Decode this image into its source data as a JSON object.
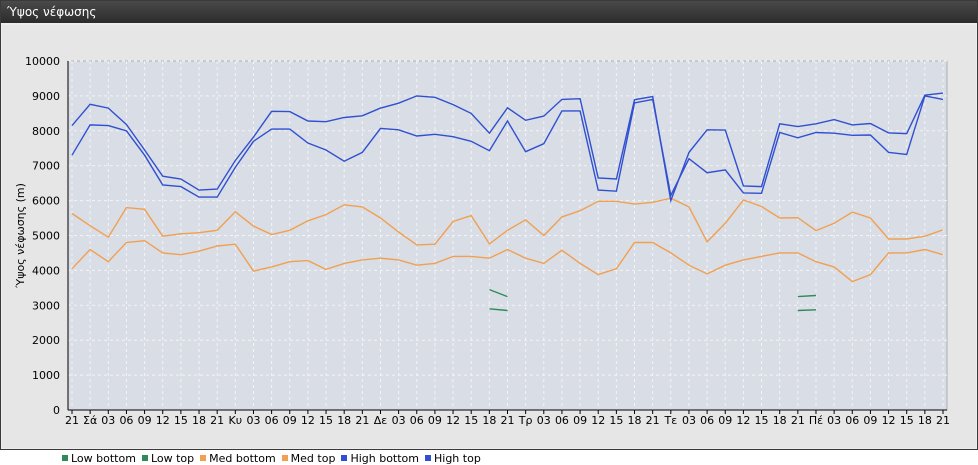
{
  "window": {
    "title": "Ύψος νέφωσης"
  },
  "chart_data": {
    "type": "line",
    "ylabel": "Ύψος νέφωσης (m)",
    "ylim": [
      0,
      10000
    ],
    "yticks": [
      0,
      1000,
      2000,
      3000,
      4000,
      5000,
      6000,
      7000,
      8000,
      9000,
      10000
    ],
    "grid": true,
    "legend_position": "bottom-left",
    "categories": [
      "21",
      "Σά",
      "03",
      "06",
      "09",
      "12",
      "15",
      "18",
      "21",
      "Κυ",
      "03",
      "06",
      "09",
      "12",
      "15",
      "18",
      "21",
      "Δε",
      "03",
      "06",
      "09",
      "12",
      "15",
      "18",
      "21",
      "Τρ",
      "03",
      "06",
      "09",
      "12",
      "15",
      "18",
      "21",
      "Τε",
      "03",
      "06",
      "09",
      "12",
      "15",
      "18",
      "21",
      "Πέ",
      "03",
      "06",
      "09",
      "12",
      "15",
      "18",
      "21"
    ],
    "series": [
      {
        "name": "Low bottom",
        "color": "#2e8b57",
        "values": [
          null,
          null,
          null,
          null,
          null,
          null,
          null,
          null,
          null,
          null,
          null,
          null,
          null,
          null,
          null,
          null,
          null,
          null,
          null,
          null,
          null,
          null,
          null,
          2900,
          2850,
          null,
          null,
          null,
          null,
          null,
          null,
          null,
          null,
          null,
          null,
          null,
          null,
          null,
          null,
          null,
          2850,
          2870,
          null,
          null,
          null,
          null,
          null,
          null,
          null
        ]
      },
      {
        "name": "Low top",
        "color": "#2e8b57",
        "values": [
          null,
          null,
          null,
          null,
          null,
          null,
          null,
          null,
          null,
          null,
          null,
          null,
          null,
          null,
          null,
          null,
          null,
          null,
          null,
          null,
          null,
          null,
          null,
          3450,
          3250,
          null,
          null,
          null,
          null,
          null,
          null,
          null,
          null,
          null,
          null,
          null,
          null,
          null,
          null,
          null,
          3250,
          3280,
          null,
          null,
          null,
          null,
          null,
          null,
          null
        ]
      },
      {
        "name": "Med bottom",
        "color": "#f0a050",
        "values": [
          4050,
          4600,
          4250,
          4800,
          4850,
          4500,
          4450,
          4550,
          4700,
          4750,
          3980,
          4100,
          4250,
          4280,
          4030,
          4200,
          4300,
          4350,
          4300,
          4150,
          4200,
          4400,
          4400,
          4350,
          4600,
          4350,
          4200,
          4580,
          4200,
          3880,
          4050,
          4800,
          4800,
          4500,
          4150,
          3900,
          4150,
          4300,
          4400,
          4500,
          4500,
          4250,
          4100,
          3680,
          3880,
          4500,
          4500,
          4600,
          4450
        ]
      },
      {
        "name": "Med top",
        "color": "#f0a050",
        "values": [
          5630,
          5280,
          4950,
          5800,
          5750,
          4980,
          5050,
          5080,
          5150,
          5680,
          5270,
          5030,
          5150,
          5420,
          5600,
          5880,
          5820,
          5500,
          5100,
          4730,
          4750,
          5400,
          5570,
          4760,
          5150,
          5450,
          5000,
          5530,
          5710,
          5980,
          5980,
          5900,
          5950,
          6070,
          5820,
          4820,
          5350,
          6020,
          5830,
          5500,
          5510,
          5140,
          5350,
          5670,
          5500,
          4900,
          4900,
          4980,
          5160
        ]
      },
      {
        "name": "High bottom",
        "color": "#3050d0",
        "values": [
          7300,
          8170,
          8150,
          8000,
          7300,
          6450,
          6400,
          6100,
          6100,
          6950,
          7700,
          8050,
          8050,
          7650,
          7450,
          7130,
          7380,
          8070,
          8030,
          7850,
          7900,
          7830,
          7700,
          7430,
          8280,
          7400,
          7630,
          8570,
          8570,
          6300,
          6270,
          8800,
          8900,
          6150,
          7200,
          6800,
          6880,
          6220,
          6210,
          7950,
          7800,
          7950,
          7930,
          7870,
          7880,
          7380,
          7320,
          9000,
          8900
        ]
      },
      {
        "name": "High top",
        "color": "#3050d0",
        "values": [
          8150,
          8760,
          8650,
          8180,
          7450,
          6700,
          6620,
          6300,
          6330,
          7150,
          7820,
          8560,
          8550,
          8280,
          8260,
          8380,
          8430,
          8650,
          8790,
          9000,
          8960,
          8750,
          8500,
          7930,
          8660,
          8300,
          8420,
          8900,
          8920,
          6650,
          6620,
          8890,
          8980,
          6000,
          7380,
          8030,
          8020,
          6420,
          6400,
          8200,
          8120,
          8200,
          8320,
          8170,
          8210,
          7940,
          7920,
          9020,
          9080
        ]
      }
    ]
  }
}
